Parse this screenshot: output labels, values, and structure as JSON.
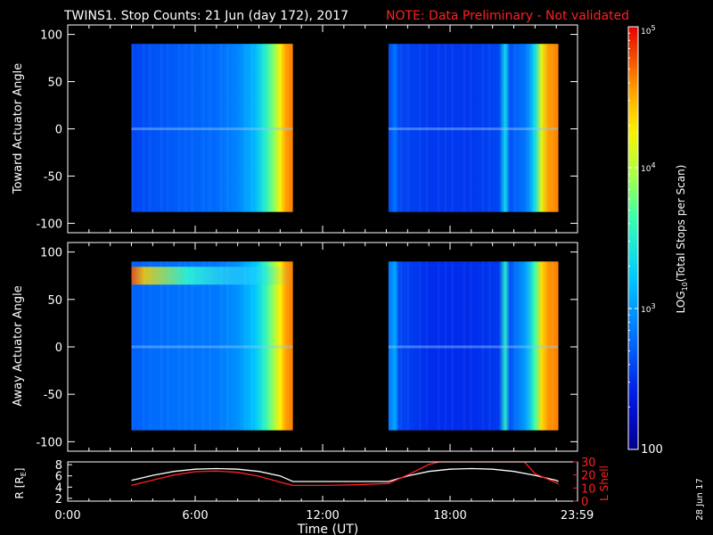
{
  "title": {
    "main": "TWINS1. Stop Counts: 21 Jun (day 172), 2017",
    "note": "NOTE: Data Preliminary - Not validated"
  },
  "date_stamp": "28 Jun 17",
  "colors": {
    "background": "#000000",
    "axis": "#ffffff",
    "note": "#ff2020",
    "r_line": "#ffffff",
    "lshell_line": "#ff2020"
  },
  "chart_data": [
    {
      "type": "heatmap",
      "name": "toward",
      "ylabel": "Toward Actuator Angle",
      "xlim_hours": [
        0,
        24
      ],
      "ylim": [
        -110,
        110
      ],
      "yticks": [
        -100,
        -50,
        0,
        50,
        100
      ],
      "ytick_labels": [
        "-100",
        "-50",
        "0",
        "50",
        "100"
      ],
      "data_range_y": [
        -88,
        90
      ],
      "segments": [
        {
          "start_hour": 3.0,
          "end_hour": 10.6,
          "profile": [
            [
              3.0,
              0.2
            ],
            [
              4.0,
              0.22
            ],
            [
              5.5,
              0.24
            ],
            [
              7.0,
              0.26
            ],
            [
              8.0,
              0.3
            ],
            [
              8.8,
              0.38
            ],
            [
              9.3,
              0.5
            ],
            [
              9.7,
              0.62
            ],
            [
              10.0,
              0.75
            ],
            [
              10.3,
              0.86
            ],
            [
              10.6,
              0.88
            ]
          ]
        },
        {
          "start_hour": 15.1,
          "end_hour": 23.1,
          "profile": [
            [
              15.1,
              0.18
            ],
            [
              15.4,
              0.28
            ],
            [
              15.6,
              0.2
            ],
            [
              17.0,
              0.18
            ],
            [
              19.0,
              0.18
            ],
            [
              20.3,
              0.2
            ],
            [
              20.6,
              0.45
            ],
            [
              20.8,
              0.22
            ],
            [
              21.6,
              0.28
            ],
            [
              22.0,
              0.45
            ],
            [
              22.3,
              0.72
            ],
            [
              22.6,
              0.85
            ],
            [
              23.1,
              0.88
            ]
          ]
        }
      ]
    },
    {
      "type": "heatmap",
      "name": "away",
      "ylabel": "Away Actuator Angle",
      "xlim_hours": [
        0,
        24
      ],
      "ylim": [
        -110,
        110
      ],
      "yticks": [
        -100,
        -50,
        0,
        50,
        100
      ],
      "ytick_labels": [
        "-100",
        "-50",
        "0",
        "50",
        "100"
      ],
      "data_range_y": [
        -88,
        90
      ],
      "segments": [
        {
          "start_hour": 3.0,
          "end_hour": 10.6,
          "profile": [
            [
              3.0,
              0.24
            ],
            [
              4.0,
              0.26
            ],
            [
              5.5,
              0.27
            ],
            [
              7.0,
              0.28
            ],
            [
              8.0,
              0.32
            ],
            [
              8.8,
              0.4
            ],
            [
              9.3,
              0.52
            ],
            [
              9.7,
              0.64
            ],
            [
              10.0,
              0.76
            ],
            [
              10.3,
              0.86
            ],
            [
              10.6,
              0.88
            ]
          ]
        },
        {
          "start_hour": 15.1,
          "end_hour": 23.1,
          "profile": [
            [
              15.1,
              0.26
            ],
            [
              15.4,
              0.36
            ],
            [
              15.6,
              0.2
            ],
            [
              17.0,
              0.16
            ],
            [
              19.0,
              0.16
            ],
            [
              20.3,
              0.18
            ],
            [
              20.6,
              0.5
            ],
            [
              20.8,
              0.22
            ],
            [
              21.6,
              0.35
            ],
            [
              22.0,
              0.55
            ],
            [
              22.3,
              0.78
            ],
            [
              22.6,
              0.86
            ],
            [
              23.1,
              0.88
            ]
          ]
        }
      ],
      "hot_band": {
        "center_y": 75,
        "start_hour": 3.0,
        "end_hour": 10.6
      }
    },
    {
      "type": "colorbar",
      "ylabel": "LOG10(Total Stops per Scan)",
      "range": [
        100,
        100000
      ],
      "scale": "log",
      "tick_values": [
        100,
        1000,
        10000,
        100000
      ],
      "tick_labels": [
        "100",
        "10",
        "10",
        "10"
      ],
      "tick_exponents": [
        "",
        "3",
        "4",
        "5"
      ]
    },
    {
      "type": "line",
      "name": "orbit",
      "xlabel": "Time (UT)",
      "xlim_hours": [
        0,
        24
      ],
      "xticks": [
        0,
        6,
        12,
        18,
        23.983
      ],
      "xtick_labels": [
        "0:00",
        "6:00",
        "12:00",
        "18:00",
        "23:59"
      ],
      "left_axis": {
        "label": "R [RE]",
        "range": [
          1.5,
          8.5
        ],
        "ticks": [
          2,
          4,
          6,
          8
        ],
        "tick_labels": [
          "2",
          "4",
          "6",
          "8"
        ]
      },
      "right_axis": {
        "label": "L Shell",
        "range": [
          0,
          30
        ],
        "ticks": [
          0,
          10,
          20,
          30
        ],
        "tick_labels": [
          "0",
          "10",
          "20",
          "30"
        ]
      },
      "series": [
        {
          "axis": "left",
          "x": [
            3.0,
            4.0,
            5.0,
            6.0,
            7.0,
            8.0,
            9.0,
            10.0,
            10.6,
            12.0,
            13.5,
            15.1,
            16.0,
            17.0,
            18.0,
            19.0,
            20.0,
            21.0,
            22.0,
            23.0,
            23.1
          ],
          "y": [
            5.2,
            6.1,
            6.8,
            7.2,
            7.3,
            7.2,
            6.8,
            6.0,
            5.0,
            5.0,
            5.0,
            5.0,
            6.0,
            6.8,
            7.2,
            7.3,
            7.2,
            6.8,
            6.1,
            5.2,
            5.0
          ]
        },
        {
          "axis": "right",
          "x": [
            3.0,
            4.0,
            5.0,
            6.0,
            7.0,
            8.0,
            9.0,
            10.0,
            10.6,
            12.0,
            13.5,
            15.1,
            16.0,
            17.0,
            17.5,
            21.5,
            22.0,
            23.0,
            23.1
          ],
          "y": [
            12,
            16,
            20,
            22.5,
            23,
            22,
            19,
            14.5,
            12,
            12,
            12.5,
            13.5,
            20,
            28,
            30,
            30,
            21,
            14,
            13
          ]
        }
      ]
    }
  ]
}
